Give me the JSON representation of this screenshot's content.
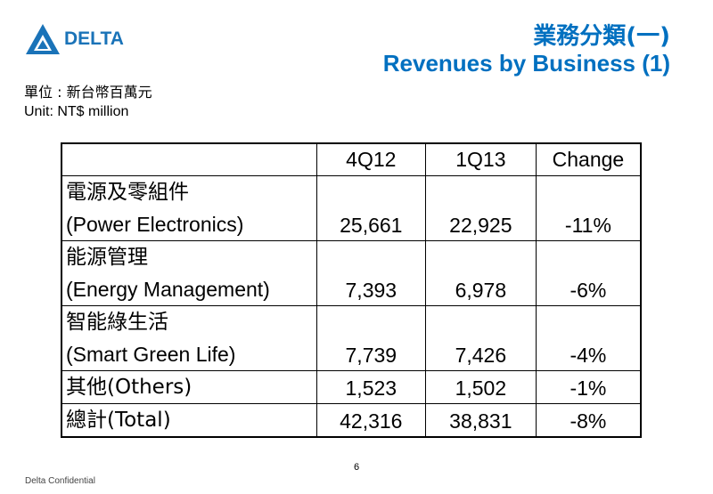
{
  "brand": {
    "name": "DELTA",
    "color": "#1a73b8"
  },
  "title": {
    "zh": "業務分類(一)",
    "en": "Revenues by Business (1)",
    "color": "#0070c0"
  },
  "unit": {
    "zh": "單位 : 新台幣百萬元",
    "en": "Unit: NT$ million"
  },
  "table": {
    "headers": [
      "",
      "4Q12",
      "1Q13",
      "Change"
    ],
    "rows": [
      {
        "zh": "電源及零組件",
        "en": "(Power Electronics)",
        "q4_12": "25,661",
        "q1_13": "22,925",
        "change": "-11%"
      },
      {
        "zh": "能源管理",
        "en": "(Energy Management)",
        "q4_12": "7,393",
        "q1_13": "6,978",
        "change": "-6%"
      },
      {
        "zh": "智能綠生活",
        "en": "(Smart Green Life)",
        "q4_12": "7,739",
        "q1_13": "7,426",
        "change": "-4%"
      },
      {
        "label": "其他(Others)",
        "q4_12": "1,523",
        "q1_13": "1,502",
        "change": "-1%"
      },
      {
        "label": "總計(Total)",
        "q4_12": "42,316",
        "q1_13": "38,831",
        "change": "-8%"
      }
    ]
  },
  "footer": {
    "page_number": "6",
    "confidential": "Delta Confidential"
  }
}
